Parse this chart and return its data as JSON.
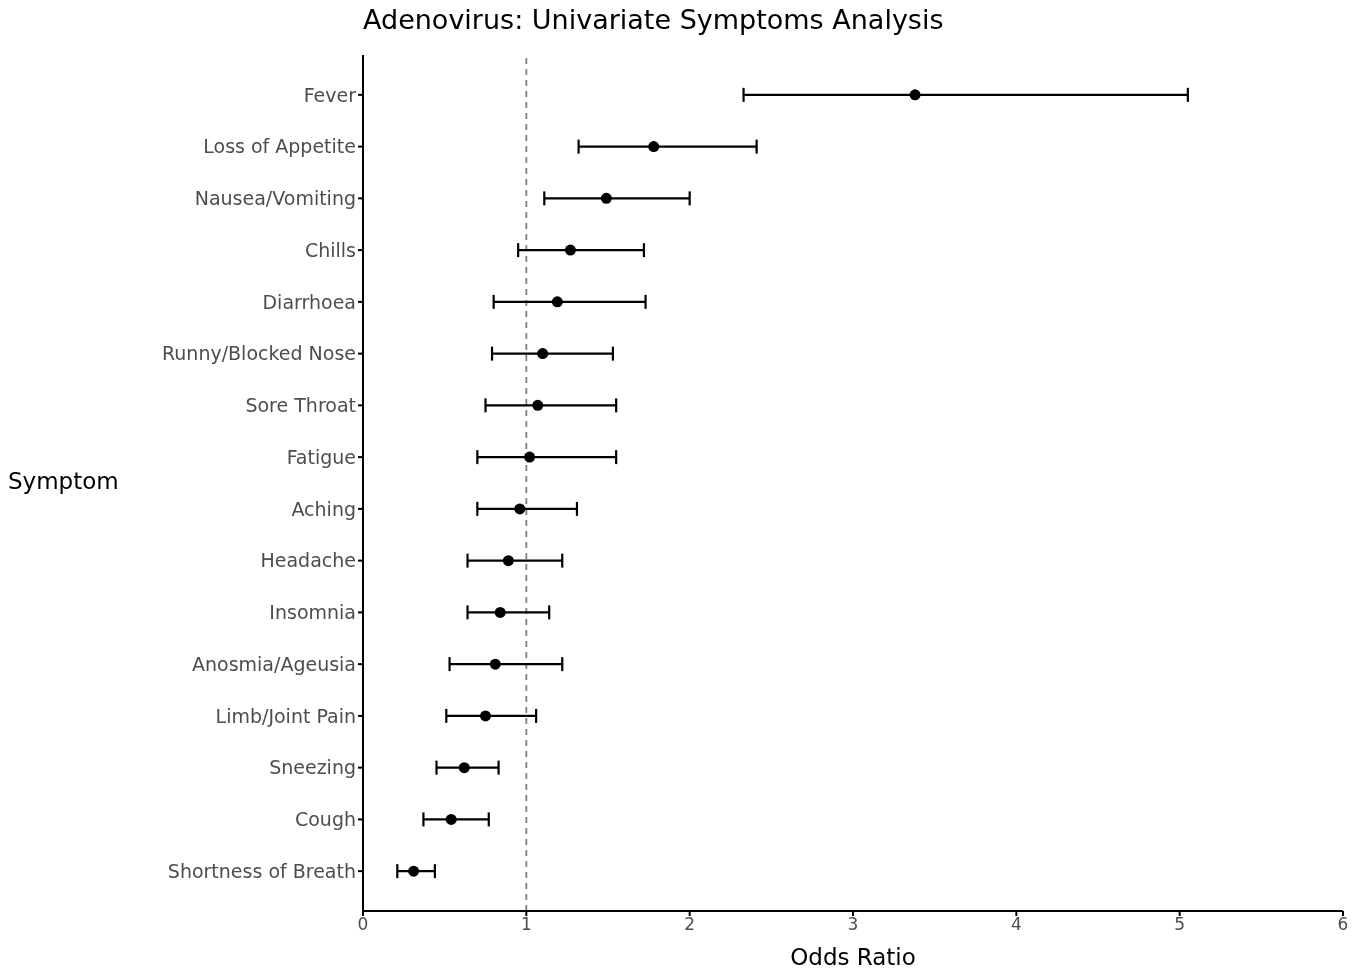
{
  "chart_data": {
    "type": "scatter",
    "title": "Adenovirus: Univariate Symptoms Analysis",
    "xlabel": "Odds Ratio",
    "ylabel": "Symptom",
    "orientation": "horizontal",
    "categories": [
      "Fever",
      "Loss of Appetite",
      "Nausea/Vomiting",
      "Chills",
      "Diarrhoea",
      "Runny/Blocked Nose",
      "Sore Throat",
      "Fatigue",
      "Aching",
      "Headache",
      "Insomnia",
      "Anosmia/Ageusia",
      "Limb/Joint Pain",
      "Sneezing",
      "Cough",
      "Shortness of Breath"
    ],
    "values": [
      3.38,
      1.78,
      1.49,
      1.27,
      1.19,
      1.1,
      1.07,
      1.02,
      0.96,
      0.89,
      0.84,
      0.81,
      0.75,
      0.62,
      0.54,
      0.31
    ],
    "errors": [
      [
        2.33,
        5.05
      ],
      [
        1.32,
        2.41
      ],
      [
        1.11,
        2.0
      ],
      [
        0.95,
        1.72
      ],
      [
        0.8,
        1.73
      ],
      [
        0.79,
        1.53
      ],
      [
        0.75,
        1.55
      ],
      [
        0.7,
        1.55
      ],
      [
        0.7,
        1.31
      ],
      [
        0.64,
        1.22
      ],
      [
        0.64,
        1.14
      ],
      [
        0.53,
        1.22
      ],
      [
        0.51,
        1.06
      ],
      [
        0.45,
        0.83
      ],
      [
        0.37,
        0.77
      ],
      [
        0.21,
        0.44
      ]
    ],
    "color": "#000000",
    "marker": "circle",
    "xlim": [
      0,
      6
    ],
    "xticks": [
      0,
      1,
      2,
      3,
      4,
      5,
      6
    ],
    "ref_lines": [
      {
        "axis": "x",
        "value": 1,
        "color": "#7f7f7f",
        "line_style": "dashed"
      }
    ],
    "grid": false,
    "legend": false
  }
}
